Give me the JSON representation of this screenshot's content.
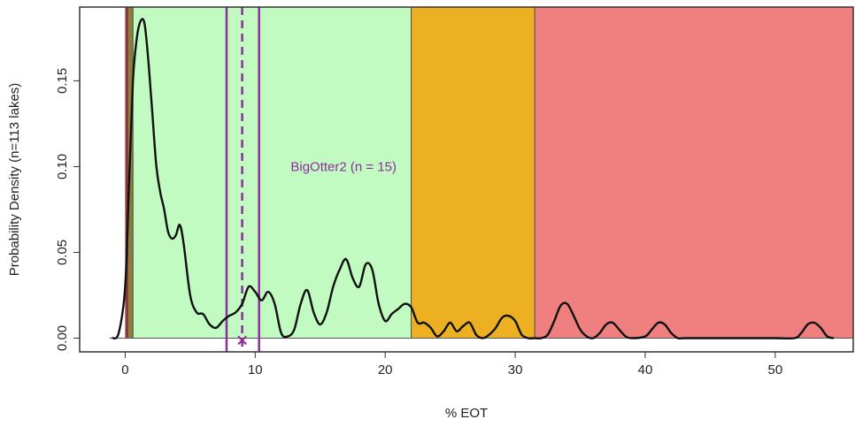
{
  "chart_data": {
    "type": "line",
    "title": "",
    "xlabel": "% EOT",
    "ylabel": "Probability Density (n=113 lakes)",
    "xlim": [
      -3.5,
      56
    ],
    "ylim": [
      -0.008,
      0.193
    ],
    "x_ticks": [
      0,
      10,
      20,
      30,
      40,
      50
    ],
    "x_tick_labels": [
      "0",
      "10",
      "20",
      "30",
      "40",
      "50"
    ],
    "y_ticks": [
      0.0,
      0.05,
      0.1,
      0.15
    ],
    "y_tick_labels": [
      "0.00",
      "0.05",
      "0.10",
      "0.15"
    ],
    "grid": false,
    "legend": "none",
    "bands": [
      {
        "x0": 0.0,
        "x1": 0.25,
        "color": "#8b3a3a"
      },
      {
        "x0": 0.25,
        "x1": 0.6,
        "color": "#8b7d3a"
      },
      {
        "x0": 0.6,
        "x1": 22.0,
        "color": "#c1fbc1"
      },
      {
        "x0": 22.0,
        "x1": 31.5,
        "color": "#ecb022"
      },
      {
        "x0": 31.5,
        "x1": 56.0,
        "color": "#f08080"
      }
    ],
    "band_boundaries": [
      0.6,
      22.0,
      31.5
    ],
    "reference_lines": {
      "color": "#8e2e9c",
      "lower": 7.8,
      "mean": 9.0,
      "upper": 10.3,
      "marker_x": 9.0,
      "marker_symbol": "×"
    },
    "annotation": {
      "text": "BigOtter2 (n = 15)",
      "x": 16.8,
      "y": 0.1,
      "color": "#8e2e9c"
    },
    "series": [
      {
        "color": "#111111",
        "x": [
          -1.0,
          -0.5,
          0.0,
          0.3,
          0.6,
          0.9,
          1.2,
          1.5,
          1.8,
          2.1,
          2.4,
          2.7,
          3.0,
          3.3,
          3.6,
          3.9,
          4.2,
          4.5,
          5.0,
          5.5,
          6.0,
          6.5,
          7.0,
          7.5,
          8.0,
          8.5,
          9.0,
          9.5,
          10.0,
          10.5,
          11.0,
          11.5,
          12.0,
          12.5,
          13.0,
          13.5,
          14.0,
          14.5,
          15.0,
          15.5,
          16.0,
          16.5,
          17.0,
          17.5,
          18.0,
          18.5,
          19.0,
          19.5,
          20.0,
          20.5,
          21.0,
          21.5,
          22.0,
          22.5,
          23.0,
          23.5,
          24.0,
          24.5,
          25.0,
          25.5,
          26.0,
          26.5,
          27.0,
          27.5,
          28.0,
          28.5,
          29.0,
          29.5,
          30.0,
          30.5,
          31.0,
          31.5,
          32.0,
          32.5,
          33.0,
          33.5,
          34.0,
          34.5,
          35.0,
          35.5,
          36.0,
          36.5,
          37.0,
          37.5,
          38.0,
          38.5,
          39.0,
          40.0,
          40.5,
          41.0,
          41.5,
          42.0,
          42.5,
          43.0,
          43.5,
          44.0,
          46.0,
          48.0,
          50.0,
          51.5,
          52.0,
          52.5,
          53.0,
          53.5,
          54.0,
          54.5
        ],
        "y": [
          0.0,
          0.003,
          0.03,
          0.09,
          0.15,
          0.175,
          0.185,
          0.183,
          0.16,
          0.13,
          0.1,
          0.085,
          0.075,
          0.062,
          0.058,
          0.06,
          0.066,
          0.055,
          0.025,
          0.015,
          0.014,
          0.008,
          0.006,
          0.01,
          0.013,
          0.015,
          0.02,
          0.03,
          0.027,
          0.022,
          0.027,
          0.02,
          0.003,
          0.001,
          0.005,
          0.02,
          0.028,
          0.015,
          0.008,
          0.015,
          0.03,
          0.04,
          0.046,
          0.035,
          0.03,
          0.043,
          0.04,
          0.02,
          0.01,
          0.014,
          0.017,
          0.02,
          0.018,
          0.009,
          0.009,
          0.006,
          0.001,
          0.004,
          0.009,
          0.004,
          0.007,
          0.009,
          0.002,
          0.0,
          0.002,
          0.006,
          0.012,
          0.013,
          0.01,
          0.002,
          0.0,
          0.0,
          0.0,
          0.002,
          0.01,
          0.019,
          0.02,
          0.013,
          0.005,
          0.001,
          0.0,
          0.003,
          0.008,
          0.009,
          0.005,
          0.001,
          0.0,
          0.001,
          0.005,
          0.009,
          0.008,
          0.003,
          0.0,
          0.0,
          0.0,
          0.0,
          0.0,
          0.0,
          0.0,
          0.0,
          0.003,
          0.008,
          0.009,
          0.006,
          0.001,
          0.0
        ]
      }
    ]
  }
}
